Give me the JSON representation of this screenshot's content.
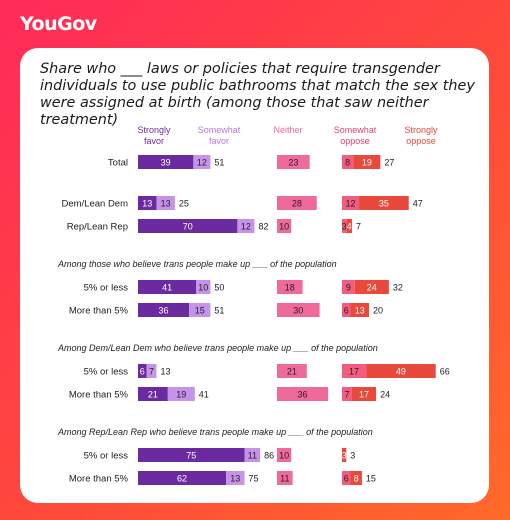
{
  "brand": "YouGov",
  "chart_data": {
    "type": "bar",
    "title": "Share who ___ laws or policies that require transgender individuals to use public bathrooms that match the sex they were assigned at birth (among those that saw neither treatment)",
    "columns": [
      {
        "key": "favor",
        "segments": [
          {
            "name": "Strongly favor",
            "color": "#6b2aa0"
          },
          {
            "name": "Somewhat favor",
            "color": "#c593e8"
          }
        ],
        "total_label": true
      },
      {
        "key": "neither",
        "segments": [
          {
            "name": "Neither",
            "color": "#ee6a9a"
          }
        ],
        "total_label": false
      },
      {
        "key": "oppose",
        "segments": [
          {
            "name": "Somewhat oppose",
            "color": "#f25d7f"
          },
          {
            "name": "Strongly oppose",
            "color": "#e8493a"
          }
        ],
        "total_label": true
      }
    ],
    "header_colors": [
      "#6b2aa0",
      "#b678e0",
      "#ee6a9a",
      "#e8416a",
      "#e8493a"
    ],
    "sections": [
      {
        "title": "",
        "rows": [
          {
            "label": "Total",
            "favor": [
              39,
              12
            ],
            "favor_total": 51,
            "neither": 23,
            "oppose": [
              8,
              19
            ],
            "oppose_total": 27
          }
        ]
      },
      {
        "title": "",
        "rows": [
          {
            "label": "Dem/Lean Dem",
            "favor": [
              13,
              13
            ],
            "favor_total": 25,
            "neither": 28,
            "oppose": [
              12,
              35
            ],
            "oppose_total": 47
          },
          {
            "label": "Rep/Lean Rep",
            "favor": [
              70,
              12
            ],
            "favor_total": 82,
            "neither": 10,
            "oppose": [
              3,
              4
            ],
            "oppose_total": 7
          }
        ]
      },
      {
        "title": "Among those who believe trans people make up ___ of the population",
        "rows": [
          {
            "label": "5% or less",
            "favor": [
              41,
              10
            ],
            "favor_total": 50,
            "neither": 18,
            "oppose": [
              9,
              24
            ],
            "oppose_total": 32
          },
          {
            "label": "More than 5%",
            "favor": [
              36,
              15
            ],
            "favor_total": 51,
            "neither": 30,
            "oppose": [
              6,
              13
            ],
            "oppose_total": 20
          }
        ]
      },
      {
        "title": "Among Dem/Lean Dem who believe trans people make up ___ of the population",
        "rows": [
          {
            "label": "5% or less",
            "favor": [
              6,
              7
            ],
            "favor_total": 13,
            "neither": 21,
            "oppose": [
              17,
              49
            ],
            "oppose_total": 66
          },
          {
            "label": "More than 5%",
            "favor": [
              21,
              19
            ],
            "favor_total": 41,
            "neither": 36,
            "oppose": [
              7,
              17
            ],
            "oppose_total": 24
          }
        ]
      },
      {
        "title": "Among Rep/Lean Rep who believe trans people make up ___ of the population",
        "rows": [
          {
            "label": "5% or less",
            "favor": [
              75,
              11
            ],
            "favor_total": 86,
            "neither": 10,
            "oppose": [
              0,
              3
            ],
            "oppose_total": 3
          },
          {
            "label": "More than 5%",
            "favor": [
              62,
              13
            ],
            "favor_total": 75,
            "neither": 11,
            "oppose": [
              6,
              8
            ],
            "oppose_total": 15
          }
        ]
      }
    ]
  }
}
